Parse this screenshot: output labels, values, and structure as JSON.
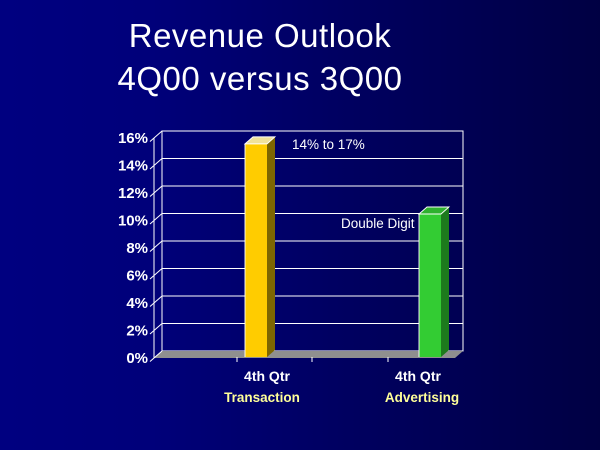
{
  "slide": {
    "title_line1": "Revenue Outlook",
    "title_line2": "4Q00 versus 3Q00",
    "background_left": "#000080",
    "background_right": "#000043",
    "title_color": "#ffffff"
  },
  "chart_data": {
    "type": "bar",
    "projection": "3d",
    "title": "",
    "xlabel": "",
    "ylabel": "",
    "categories": [
      "4th Qtr",
      "4th Qtr"
    ],
    "series_labels": [
      "Transaction",
      "Advertising"
    ],
    "values": [
      15.5,
      10.4
    ],
    "units": "%",
    "ylim": [
      0,
      16
    ],
    "ytick_step": 2,
    "ytick_labels": [
      "16%",
      "14%",
      "12%",
      "10%",
      "8%",
      "6%",
      "4%",
      "2%",
      "0%"
    ],
    "grid": true,
    "legend": "none",
    "annotations": [
      {
        "text": "14% to 17%",
        "target": "Transaction"
      },
      {
        "text": "Double Digit",
        "target": "Advertising"
      }
    ],
    "bar_front_colors": [
      "#ffcc00",
      "#33cc33"
    ],
    "bar_side_colors": [
      "#7d6600",
      "#1d7a1d"
    ],
    "bar_top_colors": [
      "#f0e29a",
      "#2fb22f"
    ],
    "gridline_color": "#ffffff",
    "axis_text_color": "#ffffff",
    "annotation_text_color": "#ffffff",
    "category_label_color": "#ffffff",
    "series_label_color": "#ffff99",
    "floor_color": "#8f8f8f"
  }
}
